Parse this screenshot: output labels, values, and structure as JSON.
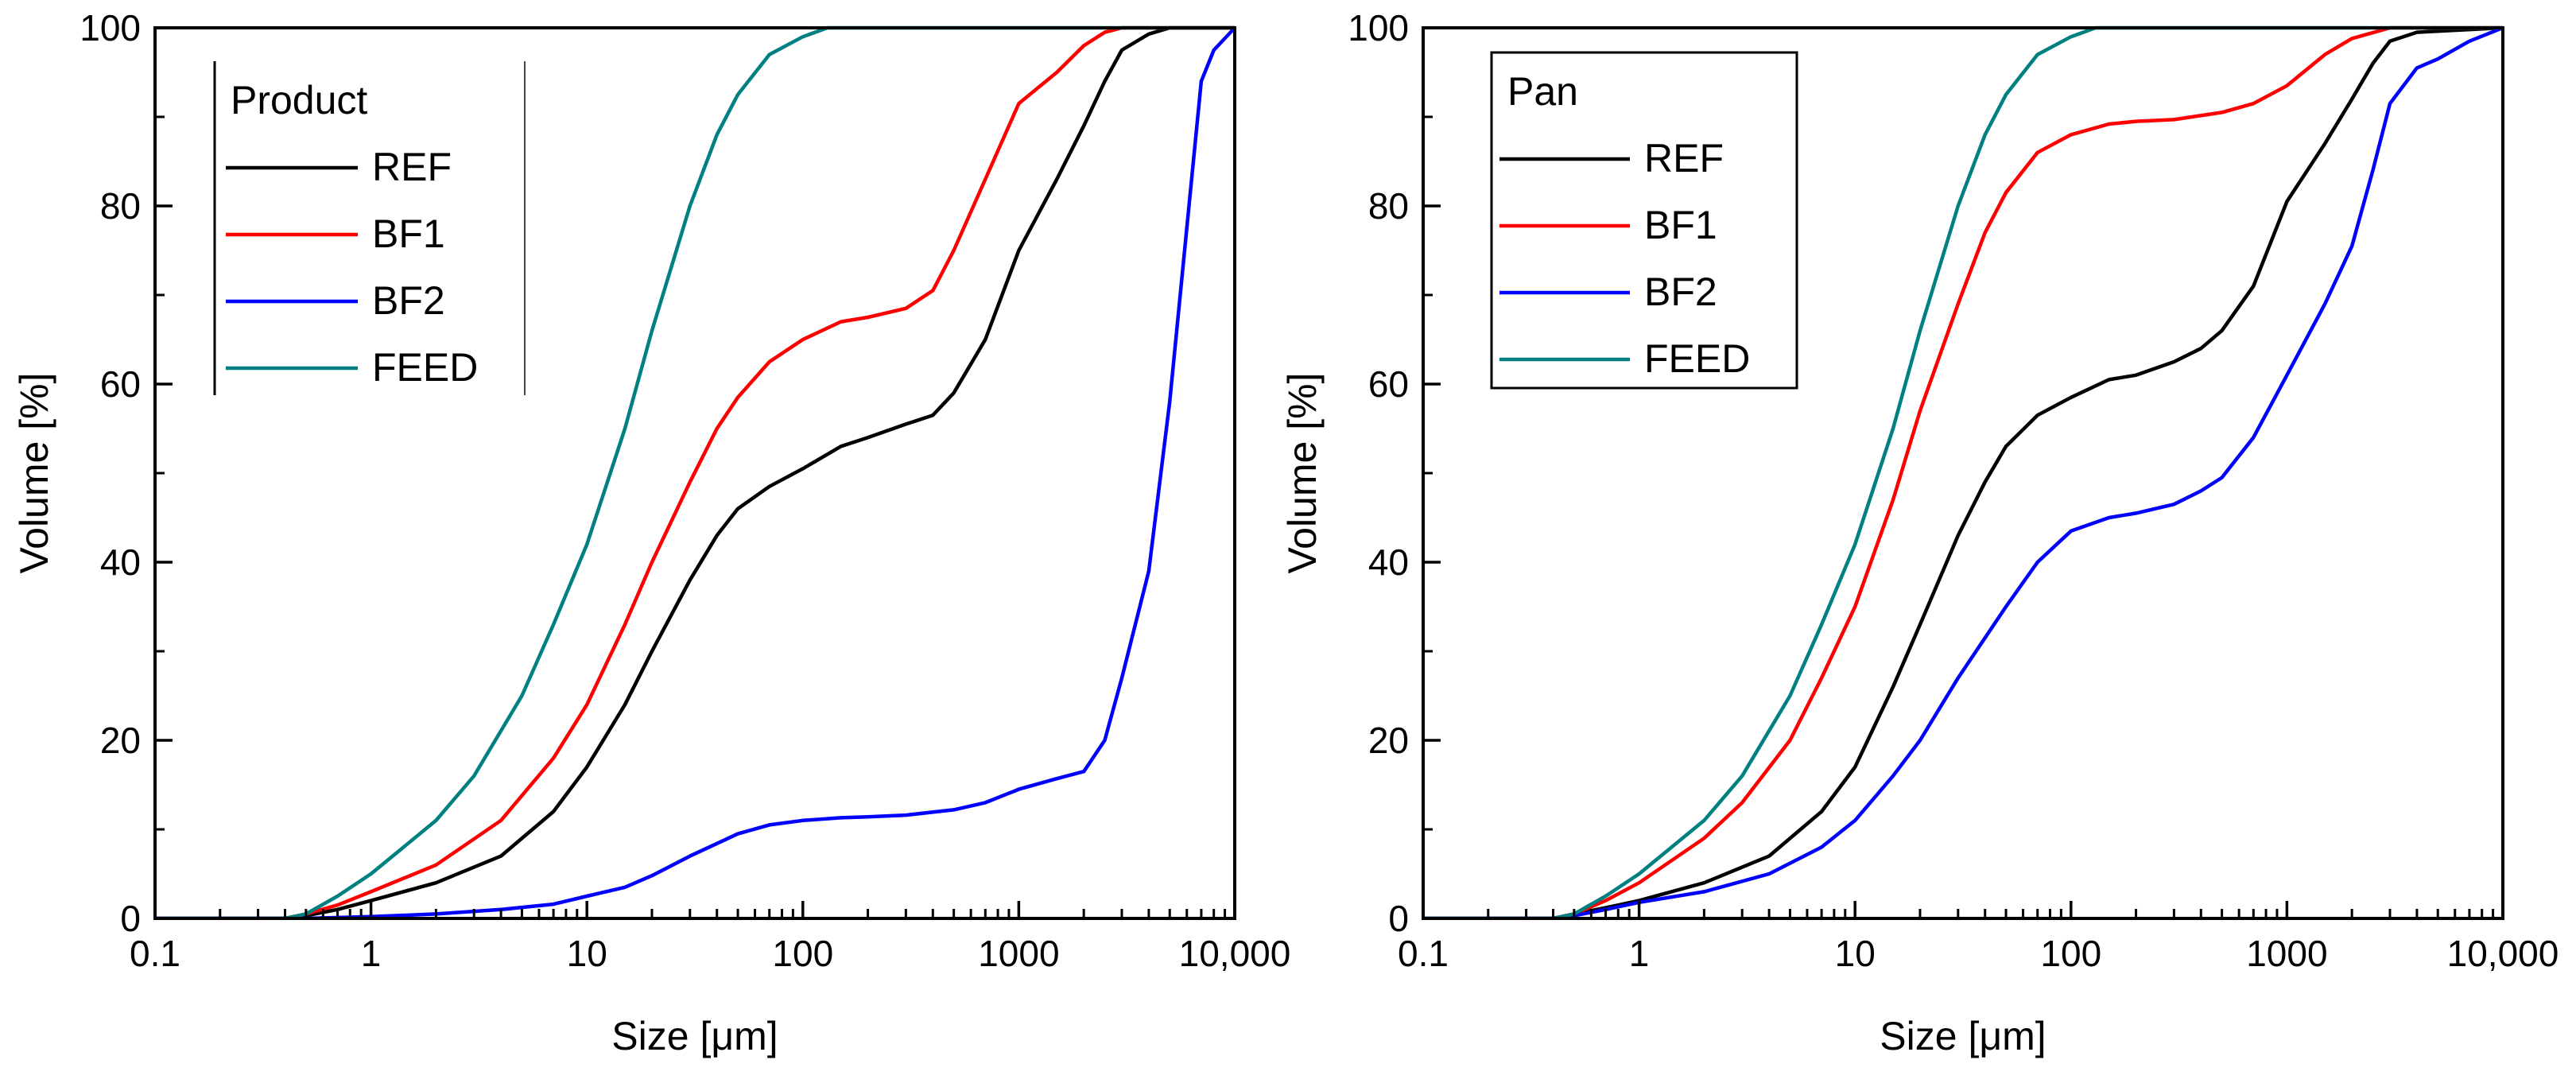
{
  "chart_data": [
    {
      "type": "line",
      "title": "",
      "xlabel": "Size [μm]",
      "ylabel": "Volume [%]",
      "xscale": "log",
      "xlim": [
        0.1,
        10000
      ],
      "ylim": [
        0,
        100
      ],
      "x_ticks": [
        0.1,
        1,
        10,
        100,
        1000,
        10000
      ],
      "x_tick_labels": [
        "0.1",
        "1",
        "10",
        "100",
        "1000",
        "10,000"
      ],
      "y_ticks": [
        0,
        20,
        40,
        60,
        80,
        100
      ],
      "y_tick_labels": [
        "0",
        "20",
        "40",
        "60",
        "80",
        "100"
      ],
      "grid": false,
      "legend": {
        "title": "Product",
        "position": "top-left",
        "entries": [
          "REF",
          "BF1",
          "BF2",
          "FEED"
        ]
      },
      "series": [
        {
          "name": "REF",
          "color": "#000000",
          "points": [
            [
              0.1,
              0
            ],
            [
              0.4,
              0
            ],
            [
              0.5,
              0.3
            ],
            [
              0.7,
              1
            ],
            [
              1,
              2
            ],
            [
              2,
              4
            ],
            [
              4,
              7
            ],
            [
              7,
              12
            ],
            [
              10,
              17
            ],
            [
              15,
              24
            ],
            [
              20,
              30
            ],
            [
              30,
              38
            ],
            [
              40,
              43
            ],
            [
              50,
              46
            ],
            [
              70,
              48.5
            ],
            [
              100,
              50.5
            ],
            [
              150,
              53
            ],
            [
              200,
              54
            ],
            [
              300,
              55.5
            ],
            [
              400,
              56.5
            ],
            [
              500,
              59
            ],
            [
              700,
              65
            ],
            [
              1000,
              75
            ],
            [
              1500,
              83
            ],
            [
              2000,
              89
            ],
            [
              2500,
              94
            ],
            [
              3000,
              97.5
            ],
            [
              4000,
              99.3
            ],
            [
              5000,
              100
            ],
            [
              10000,
              100
            ]
          ]
        },
        {
          "name": "BF1",
          "color": "#ff0000",
          "points": [
            [
              0.1,
              0
            ],
            [
              0.4,
              0
            ],
            [
              0.5,
              0.5
            ],
            [
              0.7,
              1.5
            ],
            [
              1,
              3
            ],
            [
              2,
              6
            ],
            [
              4,
              11
            ],
            [
              7,
              18
            ],
            [
              10,
              24
            ],
            [
              15,
              33
            ],
            [
              20,
              40
            ],
            [
              30,
              49
            ],
            [
              40,
              55
            ],
            [
              50,
              58.5
            ],
            [
              70,
              62.5
            ],
            [
              100,
              65
            ],
            [
              150,
              67
            ],
            [
              200,
              67.5
            ],
            [
              300,
              68.5
            ],
            [
              400,
              70.5
            ],
            [
              500,
              75
            ],
            [
              700,
              83
            ],
            [
              1000,
              91.5
            ],
            [
              1500,
              95
            ],
            [
              2000,
              98
            ],
            [
              2500,
              99.5
            ],
            [
              3000,
              100
            ],
            [
              10000,
              100
            ]
          ]
        },
        {
          "name": "BF2",
          "color": "#0000ff",
          "points": [
            [
              0.1,
              0
            ],
            [
              0.5,
              0
            ],
            [
              1,
              0.2
            ],
            [
              2,
              0.5
            ],
            [
              4,
              1
            ],
            [
              7,
              1.6
            ],
            [
              10,
              2.5
            ],
            [
              15,
              3.5
            ],
            [
              20,
              4.8
            ],
            [
              30,
              7
            ],
            [
              50,
              9.5
            ],
            [
              70,
              10.5
            ],
            [
              100,
              11
            ],
            [
              150,
              11.3
            ],
            [
              200,
              11.4
            ],
            [
              300,
              11.6
            ],
            [
              500,
              12.2
            ],
            [
              700,
              13
            ],
            [
              1000,
              14.5
            ],
            [
              1500,
              15.7
            ],
            [
              2000,
              16.5
            ],
            [
              2500,
              20
            ],
            [
              3000,
              27
            ],
            [
              4000,
              39
            ],
            [
              5000,
              58
            ],
            [
              7000,
              94
            ],
            [
              8000,
              97.5
            ],
            [
              10000,
              100
            ]
          ]
        },
        {
          "name": "FEED",
          "color": "#008080",
          "points": [
            [
              0.1,
              0
            ],
            [
              0.4,
              0
            ],
            [
              0.5,
              0.5
            ],
            [
              0.7,
              2.5
            ],
            [
              1,
              5
            ],
            [
              2,
              11
            ],
            [
              3,
              16
            ],
            [
              5,
              25
            ],
            [
              7,
              33
            ],
            [
              10,
              42
            ],
            [
              15,
              55
            ],
            [
              20,
              66
            ],
            [
              30,
              80
            ],
            [
              40,
              88
            ],
            [
              50,
              92.5
            ],
            [
              70,
              97
            ],
            [
              100,
              99
            ],
            [
              130,
              100
            ],
            [
              10000,
              100
            ]
          ]
        }
      ]
    },
    {
      "type": "line",
      "title": "",
      "xlabel": "Size [μm]",
      "ylabel": "Volume [%]",
      "xscale": "log",
      "xlim": [
        0.1,
        10000
      ],
      "ylim": [
        0,
        100
      ],
      "x_ticks": [
        0.1,
        1,
        10,
        100,
        1000,
        10000
      ],
      "x_tick_labels": [
        "0.1",
        "1",
        "10",
        "100",
        "1000",
        "10,000"
      ],
      "y_ticks": [
        0,
        20,
        40,
        60,
        80,
        100
      ],
      "y_tick_labels": [
        "0",
        "20",
        "40",
        "60",
        "80",
        "100"
      ],
      "grid": false,
      "legend": {
        "title": "Pan",
        "position": "top-left",
        "entries": [
          "REF",
          "BF1",
          "BF2",
          "FEED"
        ]
      },
      "series": [
        {
          "name": "REF",
          "color": "#000000",
          "points": [
            [
              0.1,
              0
            ],
            [
              0.4,
              0
            ],
            [
              0.5,
              0.5
            ],
            [
              0.7,
              1.2
            ],
            [
              1,
              2
            ],
            [
              2,
              4
            ],
            [
              4,
              7
            ],
            [
              7,
              12
            ],
            [
              10,
              17
            ],
            [
              15,
              26
            ],
            [
              20,
              33
            ],
            [
              30,
              43
            ],
            [
              40,
              49
            ],
            [
              50,
              53
            ],
            [
              70,
              56.5
            ],
            [
              100,
              58.5
            ],
            [
              150,
              60.5
            ],
            [
              200,
              61
            ],
            [
              300,
              62.5
            ],
            [
              400,
              64
            ],
            [
              500,
              66
            ],
            [
              700,
              71
            ],
            [
              1000,
              80.5
            ],
            [
              1500,
              87
            ],
            [
              2000,
              92
            ],
            [
              2500,
              96
            ],
            [
              3000,
              98.5
            ],
            [
              4000,
              99.5
            ],
            [
              10000,
              100
            ]
          ]
        },
        {
          "name": "BF1",
          "color": "#ff0000",
          "points": [
            [
              0.1,
              0
            ],
            [
              0.4,
              0
            ],
            [
              0.5,
              0.5
            ],
            [
              0.7,
              2
            ],
            [
              1,
              4
            ],
            [
              2,
              9
            ],
            [
              3,
              13
            ],
            [
              5,
              20
            ],
            [
              7,
              27
            ],
            [
              10,
              35
            ],
            [
              15,
              47
            ],
            [
              20,
              57
            ],
            [
              30,
              69
            ],
            [
              40,
              77
            ],
            [
              50,
              81.5
            ],
            [
              70,
              86
            ],
            [
              100,
              88
            ],
            [
              150,
              89.2
            ],
            [
              200,
              89.5
            ],
            [
              300,
              89.7
            ],
            [
              500,
              90.5
            ],
            [
              700,
              91.5
            ],
            [
              1000,
              93.5
            ],
            [
              1500,
              97
            ],
            [
              2000,
              98.8
            ],
            [
              3000,
              100
            ],
            [
              10000,
              100
            ]
          ]
        },
        {
          "name": "BF2",
          "color": "#0000ff",
          "points": [
            [
              0.1,
              0
            ],
            [
              0.4,
              0
            ],
            [
              0.5,
              0.3
            ],
            [
              0.7,
              1
            ],
            [
              1,
              1.8
            ],
            [
              2,
              3
            ],
            [
              4,
              5
            ],
            [
              7,
              8
            ],
            [
              10,
              11
            ],
            [
              15,
              16
            ],
            [
              20,
              20
            ],
            [
              30,
              27
            ],
            [
              50,
              35
            ],
            [
              70,
              40
            ],
            [
              100,
              43.5
            ],
            [
              150,
              45
            ],
            [
              200,
              45.5
            ],
            [
              300,
              46.5
            ],
            [
              400,
              48
            ],
            [
              500,
              49.5
            ],
            [
              700,
              54
            ],
            [
              1000,
              61
            ],
            [
              1500,
              69
            ],
            [
              2000,
              75.5
            ],
            [
              2500,
              84
            ],
            [
              3000,
              91.5
            ],
            [
              4000,
              95.5
            ],
            [
              5000,
              96.5
            ],
            [
              7000,
              98.5
            ],
            [
              10000,
              100
            ]
          ]
        },
        {
          "name": "FEED",
          "color": "#008080",
          "points": [
            [
              0.1,
              0
            ],
            [
              0.4,
              0
            ],
            [
              0.5,
              0.5
            ],
            [
              0.7,
              2.5
            ],
            [
              1,
              5
            ],
            [
              2,
              11
            ],
            [
              3,
              16
            ],
            [
              5,
              25
            ],
            [
              7,
              33
            ],
            [
              10,
              42
            ],
            [
              15,
              55
            ],
            [
              20,
              66
            ],
            [
              30,
              80
            ],
            [
              40,
              88
            ],
            [
              50,
              92.5
            ],
            [
              70,
              97
            ],
            [
              100,
              99
            ],
            [
              130,
              100
            ],
            [
              10000,
              100
            ]
          ]
        }
      ]
    }
  ]
}
